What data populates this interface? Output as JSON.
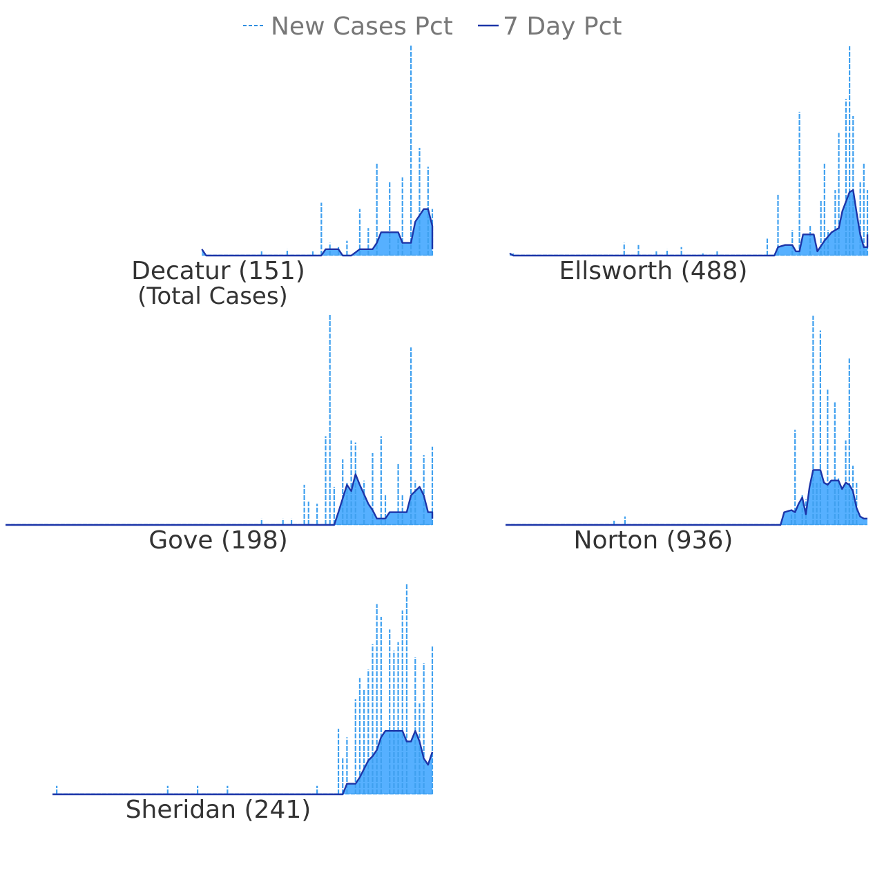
{
  "legend": {
    "items": [
      {
        "label": "New Cases Pct",
        "style": "dashed",
        "color": "#2f8ee0"
      },
      {
        "label": "7 Day Pct",
        "style": "solid",
        "color": "#1c35a8"
      }
    ]
  },
  "colors": {
    "new_cases": "#3fa0ef",
    "seven_day_line": "#1c35a8",
    "seven_day_fill": "#56b0ff",
    "label_text": "#333333",
    "legend_text": "#777777"
  },
  "chart_data": [
    {
      "type": "area",
      "title": "Decatur (151)",
      "subtitle": "(Total Cases)",
      "start": 0.46,
      "new_spikes": [
        [
          0.74,
          0.25
        ],
        [
          0.83,
          0.22
        ],
        [
          0.87,
          0.44
        ],
        [
          0.9,
          0.35
        ],
        [
          0.93,
          0.37
        ],
        [
          0.95,
          1.0
        ],
        [
          0.97,
          0.51
        ],
        [
          0.99,
          0.42
        ],
        [
          1.0,
          0.22
        ]
      ],
      "new_small": [
        [
          0.6,
          0.02
        ],
        [
          0.66,
          0.03
        ],
        [
          0.72,
          0.02
        ],
        [
          0.76,
          0.06
        ],
        [
          0.78,
          0.04
        ],
        [
          0.8,
          0.07
        ],
        [
          0.85,
          0.13
        ],
        [
          0.92,
          0.08
        ]
      ],
      "seven_day": [
        [
          0.46,
          0.03
        ],
        [
          0.47,
          0.0
        ],
        [
          0.74,
          0.0
        ],
        [
          0.75,
          0.03
        ],
        [
          0.78,
          0.03
        ],
        [
          0.79,
          0.0
        ],
        [
          0.81,
          0.0
        ],
        [
          0.83,
          0.03
        ],
        [
          0.86,
          0.03
        ],
        [
          0.87,
          0.06
        ],
        [
          0.88,
          0.11
        ],
        [
          0.92,
          0.11
        ],
        [
          0.93,
          0.06
        ],
        [
          0.95,
          0.06
        ],
        [
          0.96,
          0.16
        ],
        [
          0.98,
          0.22
        ],
        [
          0.99,
          0.22
        ],
        [
          1.0,
          0.14
        ],
        [
          1.0,
          0.03
        ]
      ]
    },
    {
      "type": "area",
      "title": "Ellsworth (488)",
      "subtitle": "",
      "start": 0.0,
      "new_spikes": [
        [
          0.75,
          0.29
        ],
        [
          0.81,
          0.68
        ],
        [
          0.87,
          0.26
        ],
        [
          0.88,
          0.44
        ],
        [
          0.91,
          0.31
        ],
        [
          0.92,
          0.58
        ],
        [
          0.94,
          0.74
        ],
        [
          0.95,
          0.99
        ],
        [
          0.96,
          0.66
        ],
        [
          0.98,
          0.35
        ],
        [
          0.99,
          0.44
        ],
        [
          1.0,
          0.31
        ]
      ],
      "new_small": [
        [
          0.01,
          0.01
        ],
        [
          0.32,
          0.06
        ],
        [
          0.36,
          0.05
        ],
        [
          0.41,
          0.02
        ],
        [
          0.44,
          0.03
        ],
        [
          0.48,
          0.04
        ],
        [
          0.54,
          0.01
        ],
        [
          0.58,
          0.02
        ],
        [
          0.72,
          0.08
        ],
        [
          0.79,
          0.12
        ],
        [
          0.84,
          0.14
        ],
        [
          0.89,
          0.12
        ]
      ],
      "seven_day": [
        [
          0.0,
          0.01
        ],
        [
          0.01,
          0.0
        ],
        [
          0.71,
          0.0
        ],
        [
          0.74,
          0.0
        ],
        [
          0.75,
          0.04
        ],
        [
          0.77,
          0.05
        ],
        [
          0.79,
          0.05
        ],
        [
          0.8,
          0.02
        ],
        [
          0.81,
          0.02
        ],
        [
          0.82,
          0.1
        ],
        [
          0.85,
          0.1
        ],
        [
          0.86,
          0.02
        ],
        [
          0.88,
          0.07
        ],
        [
          0.9,
          0.11
        ],
        [
          0.92,
          0.13
        ],
        [
          0.93,
          0.21
        ],
        [
          0.95,
          0.3
        ],
        [
          0.96,
          0.31
        ],
        [
          0.97,
          0.2
        ],
        [
          0.98,
          0.1
        ],
        [
          0.99,
          0.04
        ],
        [
          1.0,
          0.04
        ],
        [
          1.0,
          0.1
        ]
      ]
    },
    {
      "type": "area",
      "title": "Gove (198)",
      "subtitle": "",
      "start": 0.0,
      "new_spikes": [
        [
          0.7,
          0.19
        ],
        [
          0.75,
          0.42
        ],
        [
          0.76,
          1.0
        ],
        [
          0.79,
          0.31
        ],
        [
          0.81,
          0.4
        ],
        [
          0.82,
          0.39
        ],
        [
          0.86,
          0.34
        ],
        [
          0.88,
          0.42
        ],
        [
          0.92,
          0.29
        ],
        [
          0.95,
          0.84
        ],
        [
          0.98,
          0.33
        ],
        [
          1.0,
          0.37
        ]
      ],
      "new_small": [
        [
          0.6,
          0.03
        ],
        [
          0.65,
          0.03
        ],
        [
          0.67,
          0.03
        ],
        [
          0.71,
          0.11
        ],
        [
          0.73,
          0.1
        ],
        [
          0.77,
          0.18
        ],
        [
          0.8,
          0.2
        ],
        [
          0.84,
          0.21
        ],
        [
          0.89,
          0.14
        ],
        [
          0.93,
          0.14
        ],
        [
          0.96,
          0.21
        ]
      ],
      "seven_day": [
        [
          0.0,
          0.0
        ],
        [
          0.77,
          0.0
        ],
        [
          0.78,
          0.06
        ],
        [
          0.8,
          0.19
        ],
        [
          0.81,
          0.16
        ],
        [
          0.82,
          0.24
        ],
        [
          0.83,
          0.19
        ],
        [
          0.85,
          0.1
        ],
        [
          0.86,
          0.07
        ],
        [
          0.87,
          0.03
        ],
        [
          0.89,
          0.03
        ],
        [
          0.9,
          0.06
        ],
        [
          0.94,
          0.06
        ],
        [
          0.95,
          0.14
        ],
        [
          0.97,
          0.18
        ],
        [
          0.98,
          0.14
        ],
        [
          0.99,
          0.06
        ],
        [
          1.0,
          0.06
        ],
        [
          1.0,
          0.03
        ]
      ]
    },
    {
      "type": "area",
      "title": "Norton (936)",
      "subtitle": "",
      "start": 0.0,
      "new_spikes": [
        [
          0.8,
          0.45
        ],
        [
          0.85,
          0.99
        ],
        [
          0.87,
          0.92
        ],
        [
          0.89,
          0.64
        ],
        [
          0.91,
          0.58
        ],
        [
          0.94,
          0.4
        ],
        [
          0.95,
          0.79
        ],
        [
          0.97,
          0.2
        ]
      ],
      "new_small": [
        [
          0.3,
          0.02
        ],
        [
          0.33,
          0.04
        ],
        [
          0.79,
          0.05
        ],
        [
          0.82,
          0.14
        ],
        [
          0.83,
          0.12
        ],
        [
          0.86,
          0.2
        ],
        [
          0.92,
          0.22
        ],
        [
          0.96,
          0.28
        ]
      ],
      "seven_day": [
        [
          0.0,
          0.0
        ],
        [
          0.68,
          0.0
        ],
        [
          0.76,
          0.0
        ],
        [
          0.77,
          0.06
        ],
        [
          0.79,
          0.07
        ],
        [
          0.8,
          0.06
        ],
        [
          0.81,
          0.1
        ],
        [
          0.82,
          0.13
        ],
        [
          0.83,
          0.05
        ],
        [
          0.84,
          0.18
        ],
        [
          0.85,
          0.26
        ],
        [
          0.87,
          0.26
        ],
        [
          0.88,
          0.2
        ],
        [
          0.89,
          0.19
        ],
        [
          0.9,
          0.21
        ],
        [
          0.92,
          0.21
        ],
        [
          0.93,
          0.17
        ],
        [
          0.94,
          0.2
        ],
        [
          0.95,
          0.19
        ],
        [
          0.96,
          0.16
        ],
        [
          0.97,
          0.08
        ],
        [
          0.98,
          0.04
        ],
        [
          0.99,
          0.03
        ],
        [
          1.0,
          0.03
        ]
      ]
    },
    {
      "type": "area",
      "title": "Sheridan (241)",
      "subtitle": "",
      "start": 0.11,
      "new_spikes": [
        [
          0.78,
          0.31
        ],
        [
          0.82,
          0.45
        ],
        [
          0.85,
          0.59
        ],
        [
          0.86,
          0.71
        ],
        [
          0.87,
          0.9
        ],
        [
          0.88,
          0.84
        ],
        [
          0.9,
          0.78
        ],
        [
          0.91,
          0.68
        ],
        [
          0.92,
          0.72
        ],
        [
          0.93,
          0.87
        ],
        [
          0.94,
          1.0
        ],
        [
          0.96,
          0.65
        ],
        [
          0.97,
          0.43
        ],
        [
          0.98,
          0.62
        ],
        [
          1.0,
          0.7
        ]
      ],
      "new_small": [
        [
          0.12,
          0.04
        ],
        [
          0.38,
          0.04
        ],
        [
          0.45,
          0.04
        ],
        [
          0.52,
          0.04
        ],
        [
          0.73,
          0.04
        ],
        [
          0.79,
          0.17
        ],
        [
          0.8,
          0.27
        ],
        [
          0.83,
          0.55
        ],
        [
          0.84,
          0.5
        ]
      ],
      "seven_day": [
        [
          0.11,
          0.0
        ],
        [
          0.79,
          0.0
        ],
        [
          0.8,
          0.05
        ],
        [
          0.82,
          0.05
        ],
        [
          0.83,
          0.08
        ],
        [
          0.84,
          0.12
        ],
        [
          0.85,
          0.16
        ],
        [
          0.86,
          0.18
        ],
        [
          0.87,
          0.21
        ],
        [
          0.88,
          0.27
        ],
        [
          0.89,
          0.3
        ],
        [
          0.93,
          0.3
        ],
        [
          0.94,
          0.25
        ],
        [
          0.95,
          0.25
        ],
        [
          0.96,
          0.3
        ],
        [
          0.97,
          0.25
        ],
        [
          0.98,
          0.17
        ],
        [
          0.99,
          0.14
        ],
        [
          1.0,
          0.2
        ]
      ]
    }
  ]
}
